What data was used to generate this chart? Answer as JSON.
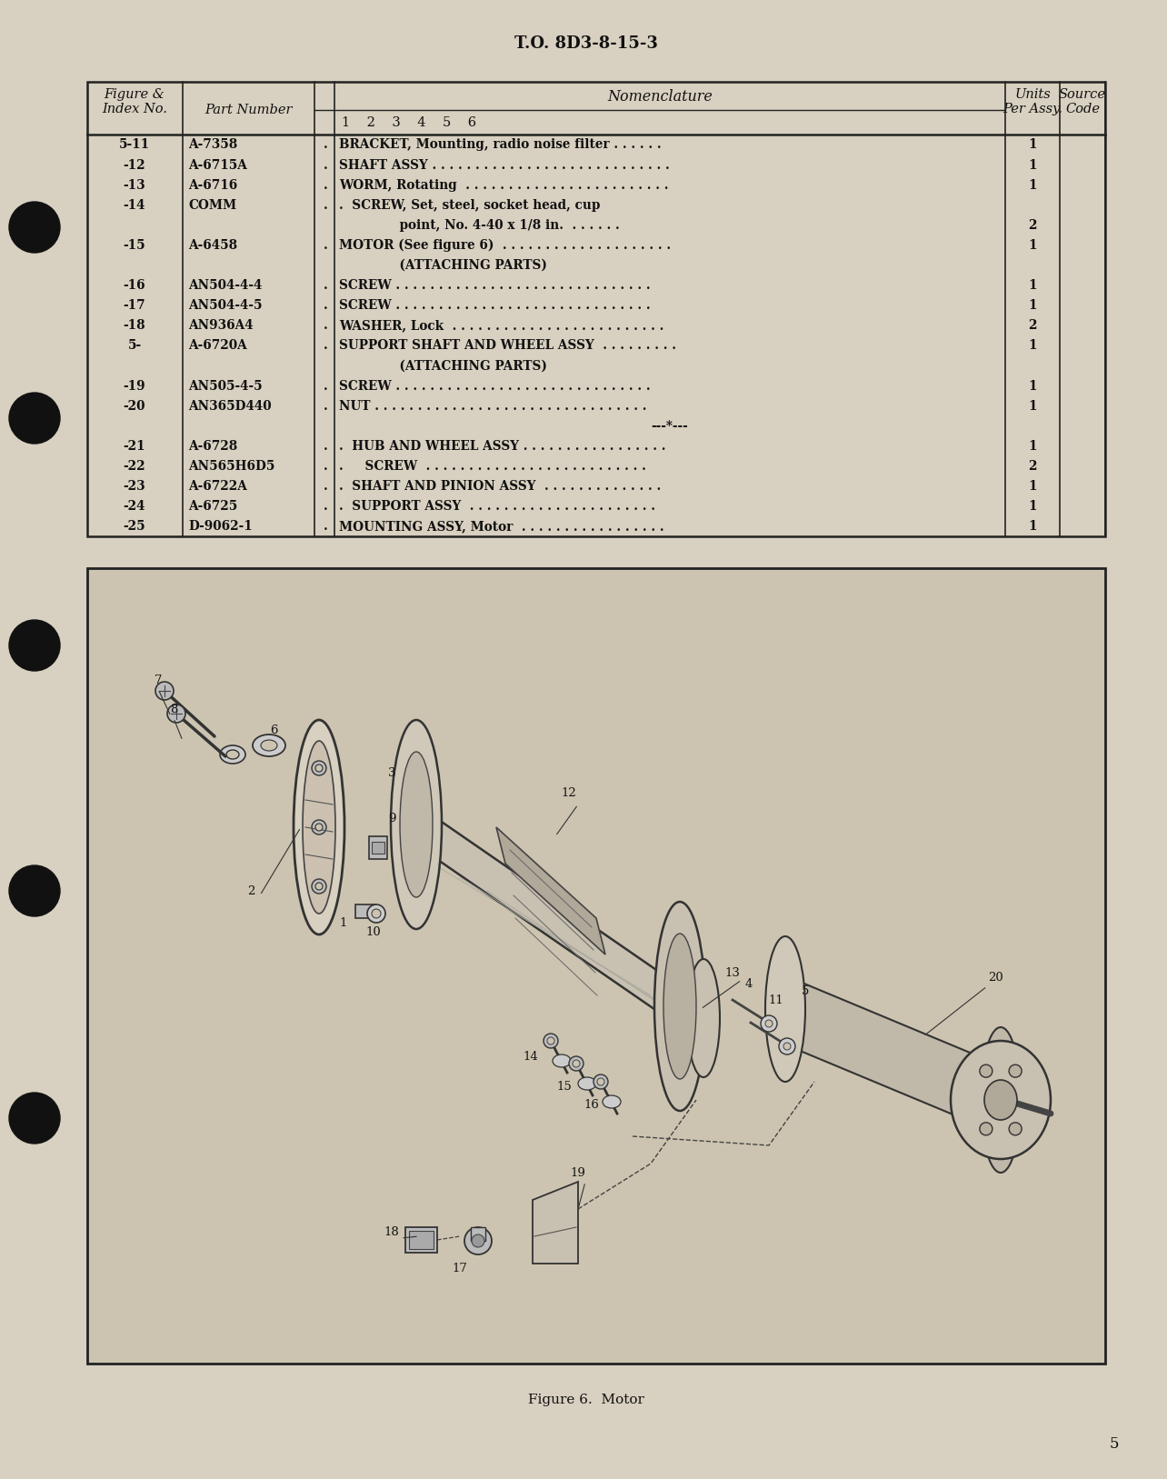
{
  "page_bg": "#d8d0c0",
  "diagram_bg": "#ccc4b0",
  "header_text": "T.O. 8D3-8-15-3",
  "table_rows": [
    {
      "fig": "5-11",
      "part": "A-7358",
      "nom1": ".",
      "nom": "BRACKET, Mounting, radio noise filter . . . . . .",
      "units": "1"
    },
    {
      "fig": "-12",
      "part": "A-6715A",
      "nom1": ".",
      "nom": "SHAFT ASSY . . . . . . . . . . . . . . . . . . . . . . . . . . . .",
      "units": "1"
    },
    {
      "fig": "-13",
      "part": "A-6716",
      "nom1": ".",
      "nom": "WORM, Rotating  . . . . . . . . . . . . . . . . . . . . . . . .",
      "units": "1"
    },
    {
      "fig": "-14",
      "part": "COMM",
      "nom1": ".",
      "nom": ".  SCREW, Set, steel, socket head, cup",
      "units": ""
    },
    {
      "fig": "",
      "part": "",
      "nom1": "",
      "nom": "              point, No. 4-40 x 1/8 in.  . . . . . .",
      "units": "2"
    },
    {
      "fig": "-15",
      "part": "A-6458",
      "nom1": ".",
      "nom": "MOTOR (See figure 6)  . . . . . . . . . . . . . . . . . . . .",
      "units": "1"
    },
    {
      "fig": "",
      "part": "",
      "nom1": "",
      "nom": "              (ATTACHING PARTS)",
      "units": ""
    },
    {
      "fig": "-16",
      "part": "AN504-4-4",
      "nom1": ".",
      "nom": "SCREW . . . . . . . . . . . . . . . . . . . . . . . . . . . . . .",
      "units": "1"
    },
    {
      "fig": "-17",
      "part": "AN504-4-5",
      "nom1": ".",
      "nom": "SCREW . . . . . . . . . . . . . . . . . . . . . . . . . . . . . .",
      "units": "1"
    },
    {
      "fig": "-18",
      "part": "AN936A4",
      "nom1": ".",
      "nom": "WASHER, Lock  . . . . . . . . . . . . . . . . . . . . . . . . .",
      "units": "2"
    },
    {
      "fig": "5-",
      "part": "A-6720A",
      "nom1": ".",
      "nom": "SUPPORT SHAFT AND WHEEL ASSY  . . . . . . . . .",
      "units": "1"
    },
    {
      "fig": "",
      "part": "",
      "nom1": "",
      "nom": "              (ATTACHING PARTS)",
      "units": ""
    },
    {
      "fig": "-19",
      "part": "AN505-4-5",
      "nom1": ".",
      "nom": "SCREW . . . . . . . . . . . . . . . . . . . . . . . . . . . . . .",
      "units": "1"
    },
    {
      "fig": "-20",
      "part": "AN365D440",
      "nom1": ".",
      "nom": "NUT . . . . . . . . . . . . . . . . . . . . . . . . . . . . . . . .",
      "units": "1"
    },
    {
      "fig": "",
      "part": "",
      "nom1": "",
      "nom": "---*---",
      "units": "",
      "center": true
    },
    {
      "fig": "-21",
      "part": "A-6728",
      "nom1": ".",
      "nom": ".  HUB AND WHEEL ASSY . . . . . . . . . . . . . . . . .",
      "units": "1"
    },
    {
      "fig": "-22",
      "part": "AN565H6D5",
      "nom1": ".",
      "nom": ".     SCREW  . . . . . . . . . . . . . . . . . . . . . . . . . .",
      "units": "2"
    },
    {
      "fig": "-23",
      "part": "A-6722A",
      "nom1": ".",
      "nom": ".  SHAFT AND PINION ASSY  . . . . . . . . . . . . . .",
      "units": "1"
    },
    {
      "fig": "-24",
      "part": "A-6725",
      "nom1": ".",
      "nom": ".  SUPPORT ASSY  . . . . . . . . . . . . . . . . . . . . . .",
      "units": "1"
    },
    {
      "fig": "-25",
      "part": "D-9062-1",
      "nom1": ".",
      "nom": "MOUNTING ASSY, Motor  . . . . . . . . . . . . . . . . .",
      "units": "1"
    }
  ],
  "figure_caption": "Figure 6.  Motor",
  "page_number": "5",
  "text_color": "#111111",
  "line_color": "#222222"
}
